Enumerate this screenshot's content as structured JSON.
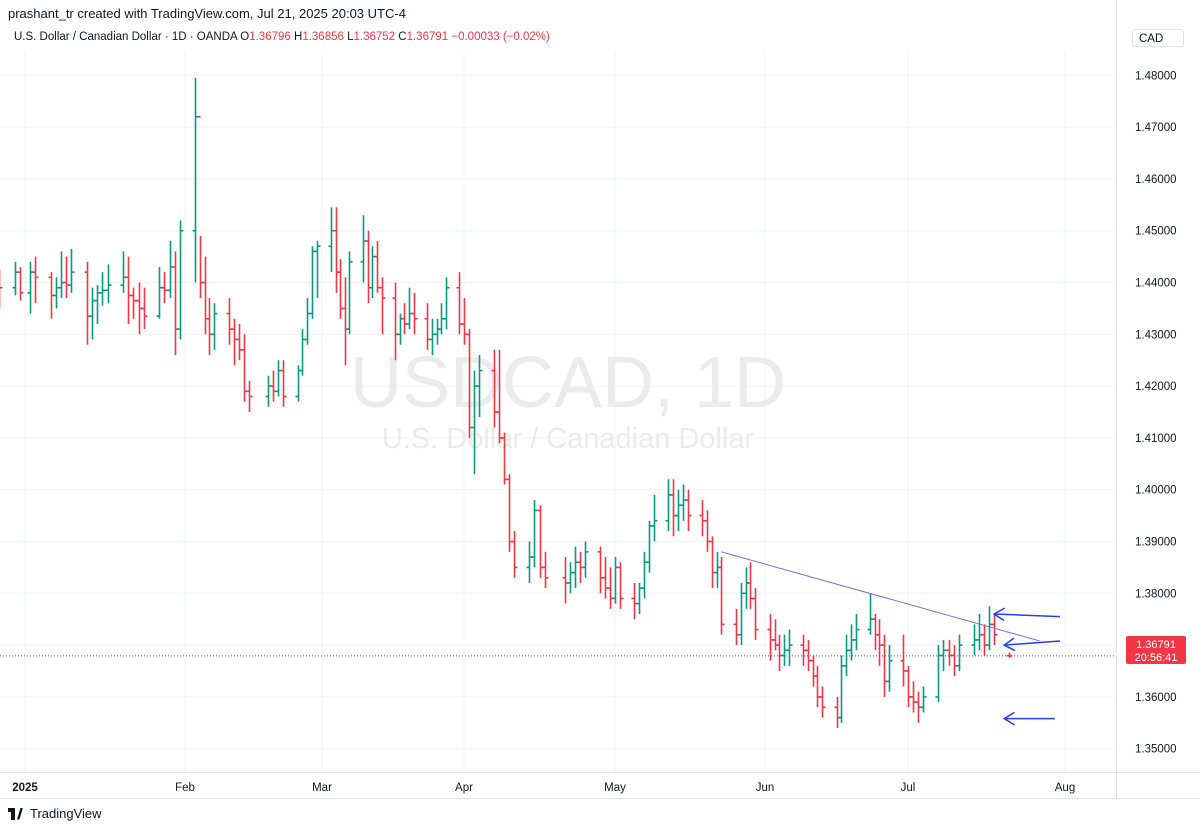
{
  "header": {
    "attribution": "prashant_tr created with TradingView.com, Jul 21, 2025 20:03 UTC-4"
  },
  "legend": {
    "symbol": "U.S. Dollar / Canadian Dollar · 1D · OANDA",
    "open_label": "O",
    "open": "1.36796",
    "high_label": "H",
    "high": "1.36856",
    "low_label": "L",
    "low": "1.36752",
    "close_label": "C",
    "close": "1.36791",
    "change": "−0.00033 (−0.02%)"
  },
  "currency": "CAD",
  "watermark": {
    "ticker": "USDCAD, 1D",
    "name": "U.S. Dollar / Canadian Dollar"
  },
  "price_tag": {
    "price": "1.36791",
    "countdown": "20:56:41"
  },
  "footer": {
    "brand": "TradingView"
  },
  "colors": {
    "up": "#089981",
    "down": "#f23645",
    "trendline": "#7e6dc9",
    "arrow": "#2a3bf0",
    "grid": "#f0f3fa"
  },
  "chart_data": {
    "type": "ohlc",
    "ylim": [
      1.3455,
      1.4845
    ],
    "y_ticks": [
      1.48,
      1.47,
      1.46,
      1.45,
      1.44,
      1.43,
      1.42,
      1.41,
      1.4,
      1.39,
      1.38,
      1.37,
      1.36,
      1.35
    ],
    "y_tick_labels": [
      "1.48000",
      "1.47000",
      "1.46000",
      "1.45000",
      "1.44000",
      "1.43000",
      "1.42000",
      "1.41000",
      "1.40000",
      "1.39000",
      "1.38000",
      "1.37000",
      "1.36000",
      "1.35000"
    ],
    "x_ticks": [
      {
        "date": "2025-01-01",
        "label": "2025"
      },
      {
        "date": "2025-02-01",
        "label": "Feb"
      },
      {
        "date": "2025-03-01",
        "label": "Mar"
      },
      {
        "date": "2025-04-01",
        "label": "Apr"
      },
      {
        "date": "2025-05-01",
        "label": "May"
      },
      {
        "date": "2025-06-01",
        "label": "Jun"
      },
      {
        "date": "2025-07-01",
        "label": "Jul"
      },
      {
        "date": "2025-08-01",
        "label": "Aug"
      }
    ],
    "bars": [
      [
        "2024-12-27",
        1.441,
        1.4425,
        1.435,
        1.439
      ],
      [
        "2024-12-30",
        1.439,
        1.444,
        1.4375,
        1.442
      ],
      [
        "2024-12-31",
        1.442,
        1.443,
        1.4365,
        1.438
      ],
      [
        "2025-01-02",
        1.438,
        1.444,
        1.434,
        1.442
      ],
      [
        "2025-01-03",
        1.442,
        1.445,
        1.436,
        1.441
      ],
      [
        "2025-01-06",
        1.441,
        1.442,
        1.433,
        1.4375
      ],
      [
        "2025-01-07",
        1.4375,
        1.441,
        1.435,
        1.439
      ],
      [
        "2025-01-08",
        1.439,
        1.446,
        1.437,
        1.44
      ],
      [
        "2025-01-09",
        1.44,
        1.445,
        1.437,
        1.4395
      ],
      [
        "2025-01-10",
        1.4395,
        1.4465,
        1.438,
        1.442
      ],
      [
        "2025-01-13",
        1.442,
        1.444,
        1.428,
        1.4335
      ],
      [
        "2025-01-14",
        1.4335,
        1.439,
        1.429,
        1.4365
      ],
      [
        "2025-01-15",
        1.4365,
        1.4395,
        1.432,
        1.438
      ],
      [
        "2025-01-16",
        1.438,
        1.442,
        1.4355,
        1.4385
      ],
      [
        "2025-01-17",
        1.4385,
        1.4435,
        1.436,
        1.4395
      ],
      [
        "2025-01-20",
        1.4395,
        1.446,
        1.438,
        1.441
      ],
      [
        "2025-01-21",
        1.441,
        1.445,
        1.432,
        1.4375
      ],
      [
        "2025-01-22",
        1.4375,
        1.439,
        1.433,
        1.4365
      ],
      [
        "2025-01-23",
        1.4365,
        1.44,
        1.43,
        1.435
      ],
      [
        "2025-01-24",
        1.435,
        1.439,
        1.431,
        1.4335
      ],
      [
        "2025-01-27",
        1.4335,
        1.443,
        1.433,
        1.439
      ],
      [
        "2025-01-28",
        1.439,
        1.442,
        1.436,
        1.4385
      ],
      [
        "2025-01-29",
        1.4385,
        1.448,
        1.437,
        1.443
      ],
      [
        "2025-01-30",
        1.443,
        1.446,
        1.426,
        1.431
      ],
      [
        "2025-01-31",
        1.431,
        1.452,
        1.429,
        1.45
      ],
      [
        "2025-02-03",
        1.45,
        1.4795,
        1.44,
        1.472
      ],
      [
        "2025-02-04",
        1.472,
        1.449,
        1.437,
        1.44
      ],
      [
        "2025-02-05",
        1.44,
        1.445,
        1.43,
        1.433
      ],
      [
        "2025-02-06",
        1.433,
        1.437,
        1.426,
        1.43
      ],
      [
        "2025-02-07",
        1.43,
        1.436,
        1.427,
        1.434
      ],
      [
        "2025-02-10",
        1.434,
        1.437,
        1.428,
        1.431
      ],
      [
        "2025-02-11",
        1.431,
        1.433,
        1.424,
        1.429
      ],
      [
        "2025-02-12",
        1.429,
        1.432,
        1.425,
        1.427
      ],
      [
        "2025-02-13",
        1.427,
        1.43,
        1.417,
        1.419
      ],
      [
        "2025-02-14",
        1.419,
        1.421,
        1.415,
        1.418
      ],
      [
        "2025-02-18",
        1.418,
        1.422,
        1.416,
        1.42
      ],
      [
        "2025-02-19",
        1.42,
        1.423,
        1.417,
        1.419
      ],
      [
        "2025-02-20",
        1.419,
        1.425,
        1.418,
        1.423
      ],
      [
        "2025-02-21",
        1.423,
        1.425,
        1.416,
        1.418
      ],
      [
        "2025-02-24",
        1.418,
        1.424,
        1.417,
        1.423
      ],
      [
        "2025-02-25",
        1.423,
        1.431,
        1.422,
        1.429
      ],
      [
        "2025-02-26",
        1.429,
        1.437,
        1.428,
        1.434
      ],
      [
        "2025-02-27",
        1.434,
        1.447,
        1.433,
        1.446
      ],
      [
        "2025-02-28",
        1.446,
        1.448,
        1.437,
        1.447
      ],
      [
        "2025-03-03",
        1.447,
        1.4545,
        1.442,
        1.45
      ],
      [
        "2025-03-04",
        1.45,
        1.4545,
        1.438,
        1.442
      ],
      [
        "2025-03-05",
        1.442,
        1.4445,
        1.433,
        1.435
      ],
      [
        "2025-03-06",
        1.435,
        1.441,
        1.424,
        1.431
      ],
      [
        "2025-03-07",
        1.431,
        1.446,
        1.43,
        1.444
      ],
      [
        "2025-03-10",
        1.444,
        1.453,
        1.44,
        1.448
      ],
      [
        "2025-03-11",
        1.448,
        1.45,
        1.436,
        1.439
      ],
      [
        "2025-03-12",
        1.439,
        1.447,
        1.437,
        1.445
      ],
      [
        "2025-03-13",
        1.445,
        1.448,
        1.438,
        1.439
      ],
      [
        "2025-03-14",
        1.439,
        1.441,
        1.43,
        1.437
      ],
      [
        "2025-03-17",
        1.437,
        1.44,
        1.425,
        1.43
      ],
      [
        "2025-03-18",
        1.43,
        1.434,
        1.428,
        1.433
      ],
      [
        "2025-03-19",
        1.433,
        1.436,
        1.43,
        1.432
      ],
      [
        "2025-03-20",
        1.432,
        1.439,
        1.431,
        1.434
      ],
      [
        "2025-03-21",
        1.434,
        1.438,
        1.43,
        1.433
      ],
      [
        "2025-03-24",
        1.433,
        1.436,
        1.427,
        1.429
      ],
      [
        "2025-03-25",
        1.429,
        1.433,
        1.426,
        1.43
      ],
      [
        "2025-03-26",
        1.43,
        1.433,
        1.428,
        1.431
      ],
      [
        "2025-03-27",
        1.431,
        1.436,
        1.43,
        1.433
      ],
      [
        "2025-03-28",
        1.433,
        1.441,
        1.431,
        1.439
      ],
      [
        "2025-03-31",
        1.439,
        1.442,
        1.43,
        1.432
      ],
      [
        "2025-04-01",
        1.432,
        1.437,
        1.428,
        1.43
      ],
      [
        "2025-04-02",
        1.43,
        1.431,
        1.41,
        1.412
      ],
      [
        "2025-04-03",
        1.412,
        1.423,
        1.403,
        1.42
      ],
      [
        "2025-04-04",
        1.42,
        1.426,
        1.414,
        1.423
      ],
      [
        "2025-04-07",
        1.423,
        1.427,
        1.412,
        1.415
      ],
      [
        "2025-04-08",
        1.415,
        1.427,
        1.409,
        1.41
      ],
      [
        "2025-04-09",
        1.41,
        1.411,
        1.401,
        1.402
      ],
      [
        "2025-04-10",
        1.402,
        1.403,
        1.388,
        1.39
      ],
      [
        "2025-04-11",
        1.39,
        1.392,
        1.383,
        1.385
      ],
      [
        "2025-04-14",
        1.385,
        1.39,
        1.382,
        1.387
      ],
      [
        "2025-04-15",
        1.387,
        1.398,
        1.385,
        1.396
      ],
      [
        "2025-04-16",
        1.396,
        1.397,
        1.383,
        1.385
      ],
      [
        "2025-04-17",
        1.385,
        1.388,
        1.381,
        1.383
      ],
      [
        "2025-04-21",
        1.383,
        1.387,
        1.378,
        1.382
      ],
      [
        "2025-04-22",
        1.382,
        1.386,
        1.38,
        1.384
      ],
      [
        "2025-04-23",
        1.384,
        1.389,
        1.381,
        1.386
      ],
      [
        "2025-04-24",
        1.386,
        1.388,
        1.382,
        1.385
      ],
      [
        "2025-04-25",
        1.385,
        1.39,
        1.383,
        1.388
      ],
      [
        "2025-04-28",
        1.388,
        1.389,
        1.38,
        1.383
      ],
      [
        "2025-04-29",
        1.383,
        1.387,
        1.379,
        1.381
      ],
      [
        "2025-04-30",
        1.381,
        1.385,
        1.377,
        1.379
      ],
      [
        "2025-05-01",
        1.379,
        1.387,
        1.378,
        1.385
      ],
      [
        "2025-05-02",
        1.385,
        1.386,
        1.377,
        1.379
      ],
      [
        "2025-05-05",
        1.379,
        1.382,
        1.375,
        1.378
      ],
      [
        "2025-05-06",
        1.378,
        1.382,
        1.376,
        1.381
      ],
      [
        "2025-05-07",
        1.381,
        1.388,
        1.379,
        1.386
      ],
      [
        "2025-05-08",
        1.386,
        1.394,
        1.384,
        1.393
      ],
      [
        "2025-05-09",
        1.393,
        1.399,
        1.39,
        1.394
      ],
      [
        "2025-05-12",
        1.394,
        1.402,
        1.392,
        1.399
      ],
      [
        "2025-05-13",
        1.399,
        1.402,
        1.391,
        1.395
      ],
      [
        "2025-05-14",
        1.395,
        1.4,
        1.392,
        1.397
      ],
      [
        "2025-05-15",
        1.397,
        1.401,
        1.394,
        1.398
      ],
      [
        "2025-05-16",
        1.398,
        1.4,
        1.392,
        1.395
      ],
      [
        "2025-05-19",
        1.395,
        1.398,
        1.391,
        1.394
      ],
      [
        "2025-05-20",
        1.394,
        1.396,
        1.388,
        1.39
      ],
      [
        "2025-05-21",
        1.39,
        1.391,
        1.381,
        1.384
      ],
      [
        "2025-05-22",
        1.384,
        1.388,
        1.381,
        1.385
      ],
      [
        "2025-05-23",
        1.385,
        1.387,
        1.372,
        1.374
      ],
      [
        "2025-05-26",
        1.374,
        1.377,
        1.37,
        1.372
      ],
      [
        "2025-05-27",
        1.372,
        1.382,
        1.37,
        1.38
      ],
      [
        "2025-05-28",
        1.38,
        1.385,
        1.377,
        1.382
      ],
      [
        "2025-05-29",
        1.382,
        1.386,
        1.377,
        1.379
      ],
      [
        "2025-05-30",
        1.379,
        1.381,
        1.371,
        1.373
      ],
      [
        "2025-06-02",
        1.373,
        1.376,
        1.367,
        1.371
      ],
      [
        "2025-06-03",
        1.371,
        1.375,
        1.369,
        1.37
      ],
      [
        "2025-06-04",
        1.37,
        1.372,
        1.365,
        1.368
      ],
      [
        "2025-06-05",
        1.368,
        1.372,
        1.366,
        1.369
      ],
      [
        "2025-06-06",
        1.369,
        1.373,
        1.366,
        1.37
      ],
      [
        "2025-06-09",
        1.37,
        1.372,
        1.366,
        1.369
      ],
      [
        "2025-06-10",
        1.369,
        1.371,
        1.365,
        1.367
      ],
      [
        "2025-06-11",
        1.367,
        1.368,
        1.362,
        1.364
      ],
      [
        "2025-06-12",
        1.364,
        1.366,
        1.358,
        1.36
      ],
      [
        "2025-06-13",
        1.36,
        1.362,
        1.356,
        1.358
      ],
      [
        "2025-06-16",
        1.358,
        1.36,
        1.354,
        1.356
      ],
      [
        "2025-06-17",
        1.356,
        1.368,
        1.355,
        1.366
      ],
      [
        "2025-06-18",
        1.366,
        1.372,
        1.364,
        1.369
      ],
      [
        "2025-06-19",
        1.369,
        1.374,
        1.367,
        1.371
      ],
      [
        "2025-06-20",
        1.371,
        1.376,
        1.369,
        1.373
      ],
      [
        "2025-06-23",
        1.373,
        1.38,
        1.372,
        1.375
      ],
      [
        "2025-06-24",
        1.375,
        1.376,
        1.369,
        1.372
      ],
      [
        "2025-06-25",
        1.372,
        1.375,
        1.366,
        1.37
      ],
      [
        "2025-06-26",
        1.37,
        1.372,
        1.36,
        1.363
      ],
      [
        "2025-06-27",
        1.363,
        1.37,
        1.361,
        1.367
      ],
      [
        "2025-06-30",
        1.367,
        1.372,
        1.362,
        1.365
      ],
      [
        "2025-07-01",
        1.365,
        1.366,
        1.358,
        1.36
      ],
      [
        "2025-07-02",
        1.36,
        1.363,
        1.357,
        1.359
      ],
      [
        "2025-07-03",
        1.359,
        1.361,
        1.355,
        1.358
      ],
      [
        "2025-07-04",
        1.358,
        1.362,
        1.357,
        1.36
      ],
      [
        "2025-07-07",
        1.36,
        1.37,
        1.359,
        1.368
      ],
      [
        "2025-07-08",
        1.368,
        1.371,
        1.365,
        1.369
      ],
      [
        "2025-07-09",
        1.369,
        1.371,
        1.366,
        1.368
      ],
      [
        "2025-07-10",
        1.368,
        1.37,
        1.364,
        1.366
      ],
      [
        "2025-07-11",
        1.366,
        1.372,
        1.365,
        1.37
      ],
      [
        "2025-07-14",
        1.37,
        1.374,
        1.368,
        1.371
      ],
      [
        "2025-07-15",
        1.371,
        1.376,
        1.369,
        1.372
      ],
      [
        "2025-07-16",
        1.372,
        1.374,
        1.368,
        1.37
      ],
      [
        "2025-07-17",
        1.37,
        1.3775,
        1.369,
        1.374
      ],
      [
        "2025-07-18",
        1.374,
        1.376,
        1.37,
        1.372
      ],
      [
        "2025-07-21",
        1.36796,
        1.36856,
        1.36752,
        1.36791
      ]
    ],
    "trendline": {
      "from": [
        "2025-05-23",
        1.388
      ],
      "to": [
        "2025-07-27",
        1.3708
      ]
    },
    "arrows": [
      {
        "from": [
          "2025-07-31",
          1.3755
        ],
        "to": [
          "2025-07-18",
          1.376
        ]
      },
      {
        "from": [
          "2025-07-31",
          1.3708
        ],
        "to": [
          "2025-07-20",
          1.37
        ]
      },
      {
        "from": [
          "2025-07-30",
          1.3558
        ],
        "to": [
          "2025-07-20",
          1.3558
        ]
      }
    ],
    "current_price": 1.36791
  }
}
